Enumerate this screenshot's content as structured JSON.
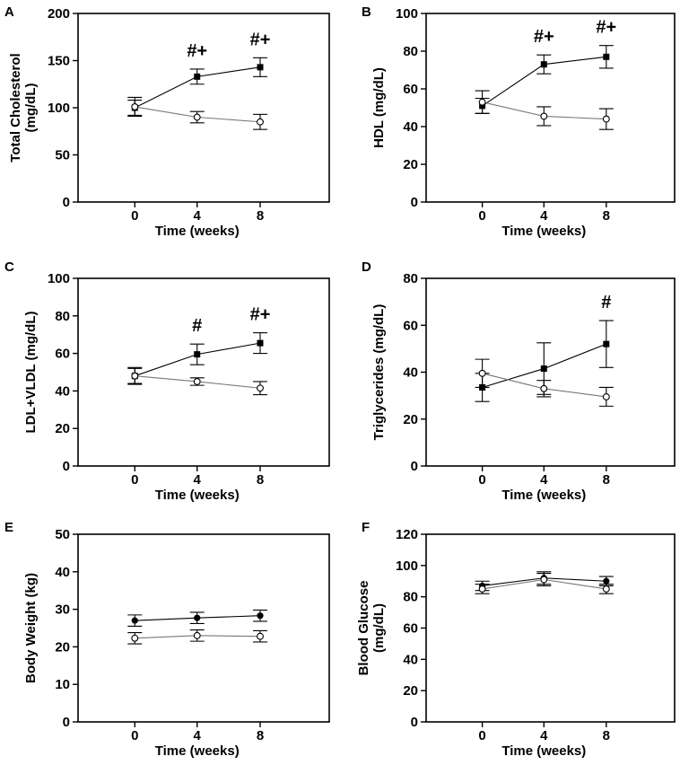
{
  "figure": {
    "x_ticks": [
      "0",
      "4",
      "8"
    ],
    "xlabel": "Time (weeks)",
    "panels": [
      {
        "letter": "A",
        "chart_data": {
          "type": "line",
          "ylabel_lines": [
            "Total Cholesterol",
            "(mg/dL)"
          ],
          "ylim": [
            0,
            200
          ],
          "yticks": [
            "0",
            "50",
            "100",
            "150",
            "200"
          ],
          "x": [
            0,
            4,
            8
          ],
          "series": [
            {
              "name": "filled",
              "marker": "filled-square",
              "values": [
                100,
                133,
                143
              ],
              "errors": [
                8,
                8,
                10
              ]
            },
            {
              "name": "open",
              "marker": "open-circle",
              "values": [
                101,
                90,
                85
              ],
              "errors": [
                10,
                6,
                8
              ]
            }
          ],
          "annotations": [
            {
              "x": 4,
              "text": "#+"
            },
            {
              "x": 8,
              "text": "#+"
            }
          ]
        }
      },
      {
        "letter": "B",
        "chart_data": {
          "type": "line",
          "ylabel_lines": [
            "HDL (mg/dL)"
          ],
          "ylim": [
            0,
            100
          ],
          "yticks": [
            "0",
            "20",
            "40",
            "60",
            "80",
            "100"
          ],
          "x": [
            0,
            4,
            8
          ],
          "series": [
            {
              "name": "filled",
              "marker": "filled-square",
              "values": [
                51,
                73,
                77
              ],
              "errors": [
                4,
                5,
                6
              ]
            },
            {
              "name": "open",
              "marker": "open-circle",
              "values": [
                53,
                45.5,
                44
              ],
              "errors": [
                6,
                5,
                5.5
              ]
            }
          ],
          "annotations": [
            {
              "x": 4,
              "text": "#+"
            },
            {
              "x": 8,
              "text": "#+"
            }
          ]
        }
      },
      {
        "letter": "C",
        "chart_data": {
          "type": "line",
          "ylabel_lines": [
            "LDL+VLDL (mg/dL)"
          ],
          "ylim": [
            0,
            100
          ],
          "yticks": [
            "0",
            "20",
            "40",
            "60",
            "80",
            "100"
          ],
          "x": [
            0,
            4,
            8
          ],
          "series": [
            {
              "name": "filled",
              "marker": "filled-square",
              "values": [
                48,
                59.5,
                65.5
              ],
              "errors": [
                4.5,
                5.5,
                5.5
              ]
            },
            {
              "name": "open",
              "marker": "open-circle",
              "values": [
                48,
                45,
                41.5
              ],
              "errors": [
                4,
                2,
                3.5
              ]
            }
          ],
          "annotations": [
            {
              "x": 4,
              "text": "#"
            },
            {
              "x": 8,
              "text": "#+"
            }
          ]
        }
      },
      {
        "letter": "D",
        "chart_data": {
          "type": "line",
          "ylabel_lines": [
            "Triglycerides (mg/dL)"
          ],
          "ylim": [
            0,
            80
          ],
          "yticks": [
            "0",
            "20",
            "40",
            "60",
            "80"
          ],
          "x": [
            0,
            4,
            8
          ],
          "series": [
            {
              "name": "filled",
              "marker": "filled-square",
              "values": [
                33.5,
                41.5,
                52
              ],
              "errors": [
                6,
                11,
                10
              ]
            },
            {
              "name": "open",
              "marker": "open-circle",
              "values": [
                39.5,
                33,
                29.5
              ],
              "errors": [
                6,
                3.5,
                4
              ]
            }
          ],
          "annotations": [
            {
              "x": 8,
              "text": "#"
            }
          ]
        }
      },
      {
        "letter": "E",
        "chart_data": {
          "type": "line",
          "ylabel_lines": [
            "Body Weight (kg)"
          ],
          "ylim": [
            0,
            50
          ],
          "yticks": [
            "0",
            "10",
            "20",
            "30",
            "40",
            "50"
          ],
          "x": [
            0,
            4,
            8
          ],
          "series": [
            {
              "name": "filled",
              "marker": "filled-circle",
              "values": [
                27,
                27.7,
                28.3
              ],
              "errors": [
                1.5,
                1.5,
                1.5
              ]
            },
            {
              "name": "open",
              "marker": "open-circle",
              "values": [
                22.3,
                23,
                22.8
              ],
              "errors": [
                1.5,
                1.5,
                1.5
              ]
            }
          ],
          "annotations": []
        }
      },
      {
        "letter": "F",
        "chart_data": {
          "type": "line",
          "ylabel_lines": [
            "Blood Glucose",
            "(mg/dL)"
          ],
          "ylim": [
            0,
            120
          ],
          "yticks": [
            "0",
            "20",
            "40",
            "60",
            "80",
            "100",
            "120"
          ],
          "x": [
            0,
            4,
            8
          ],
          "series": [
            {
              "name": "filled",
              "marker": "filled-circle",
              "values": [
                87,
                92,
                90
              ],
              "errors": [
                3,
                4,
                3
              ]
            },
            {
              "name": "open",
              "marker": "open-circle",
              "values": [
                85,
                91,
                85
              ],
              "errors": [
                3,
                4,
                3
              ]
            }
          ],
          "annotations": []
        }
      }
    ]
  }
}
